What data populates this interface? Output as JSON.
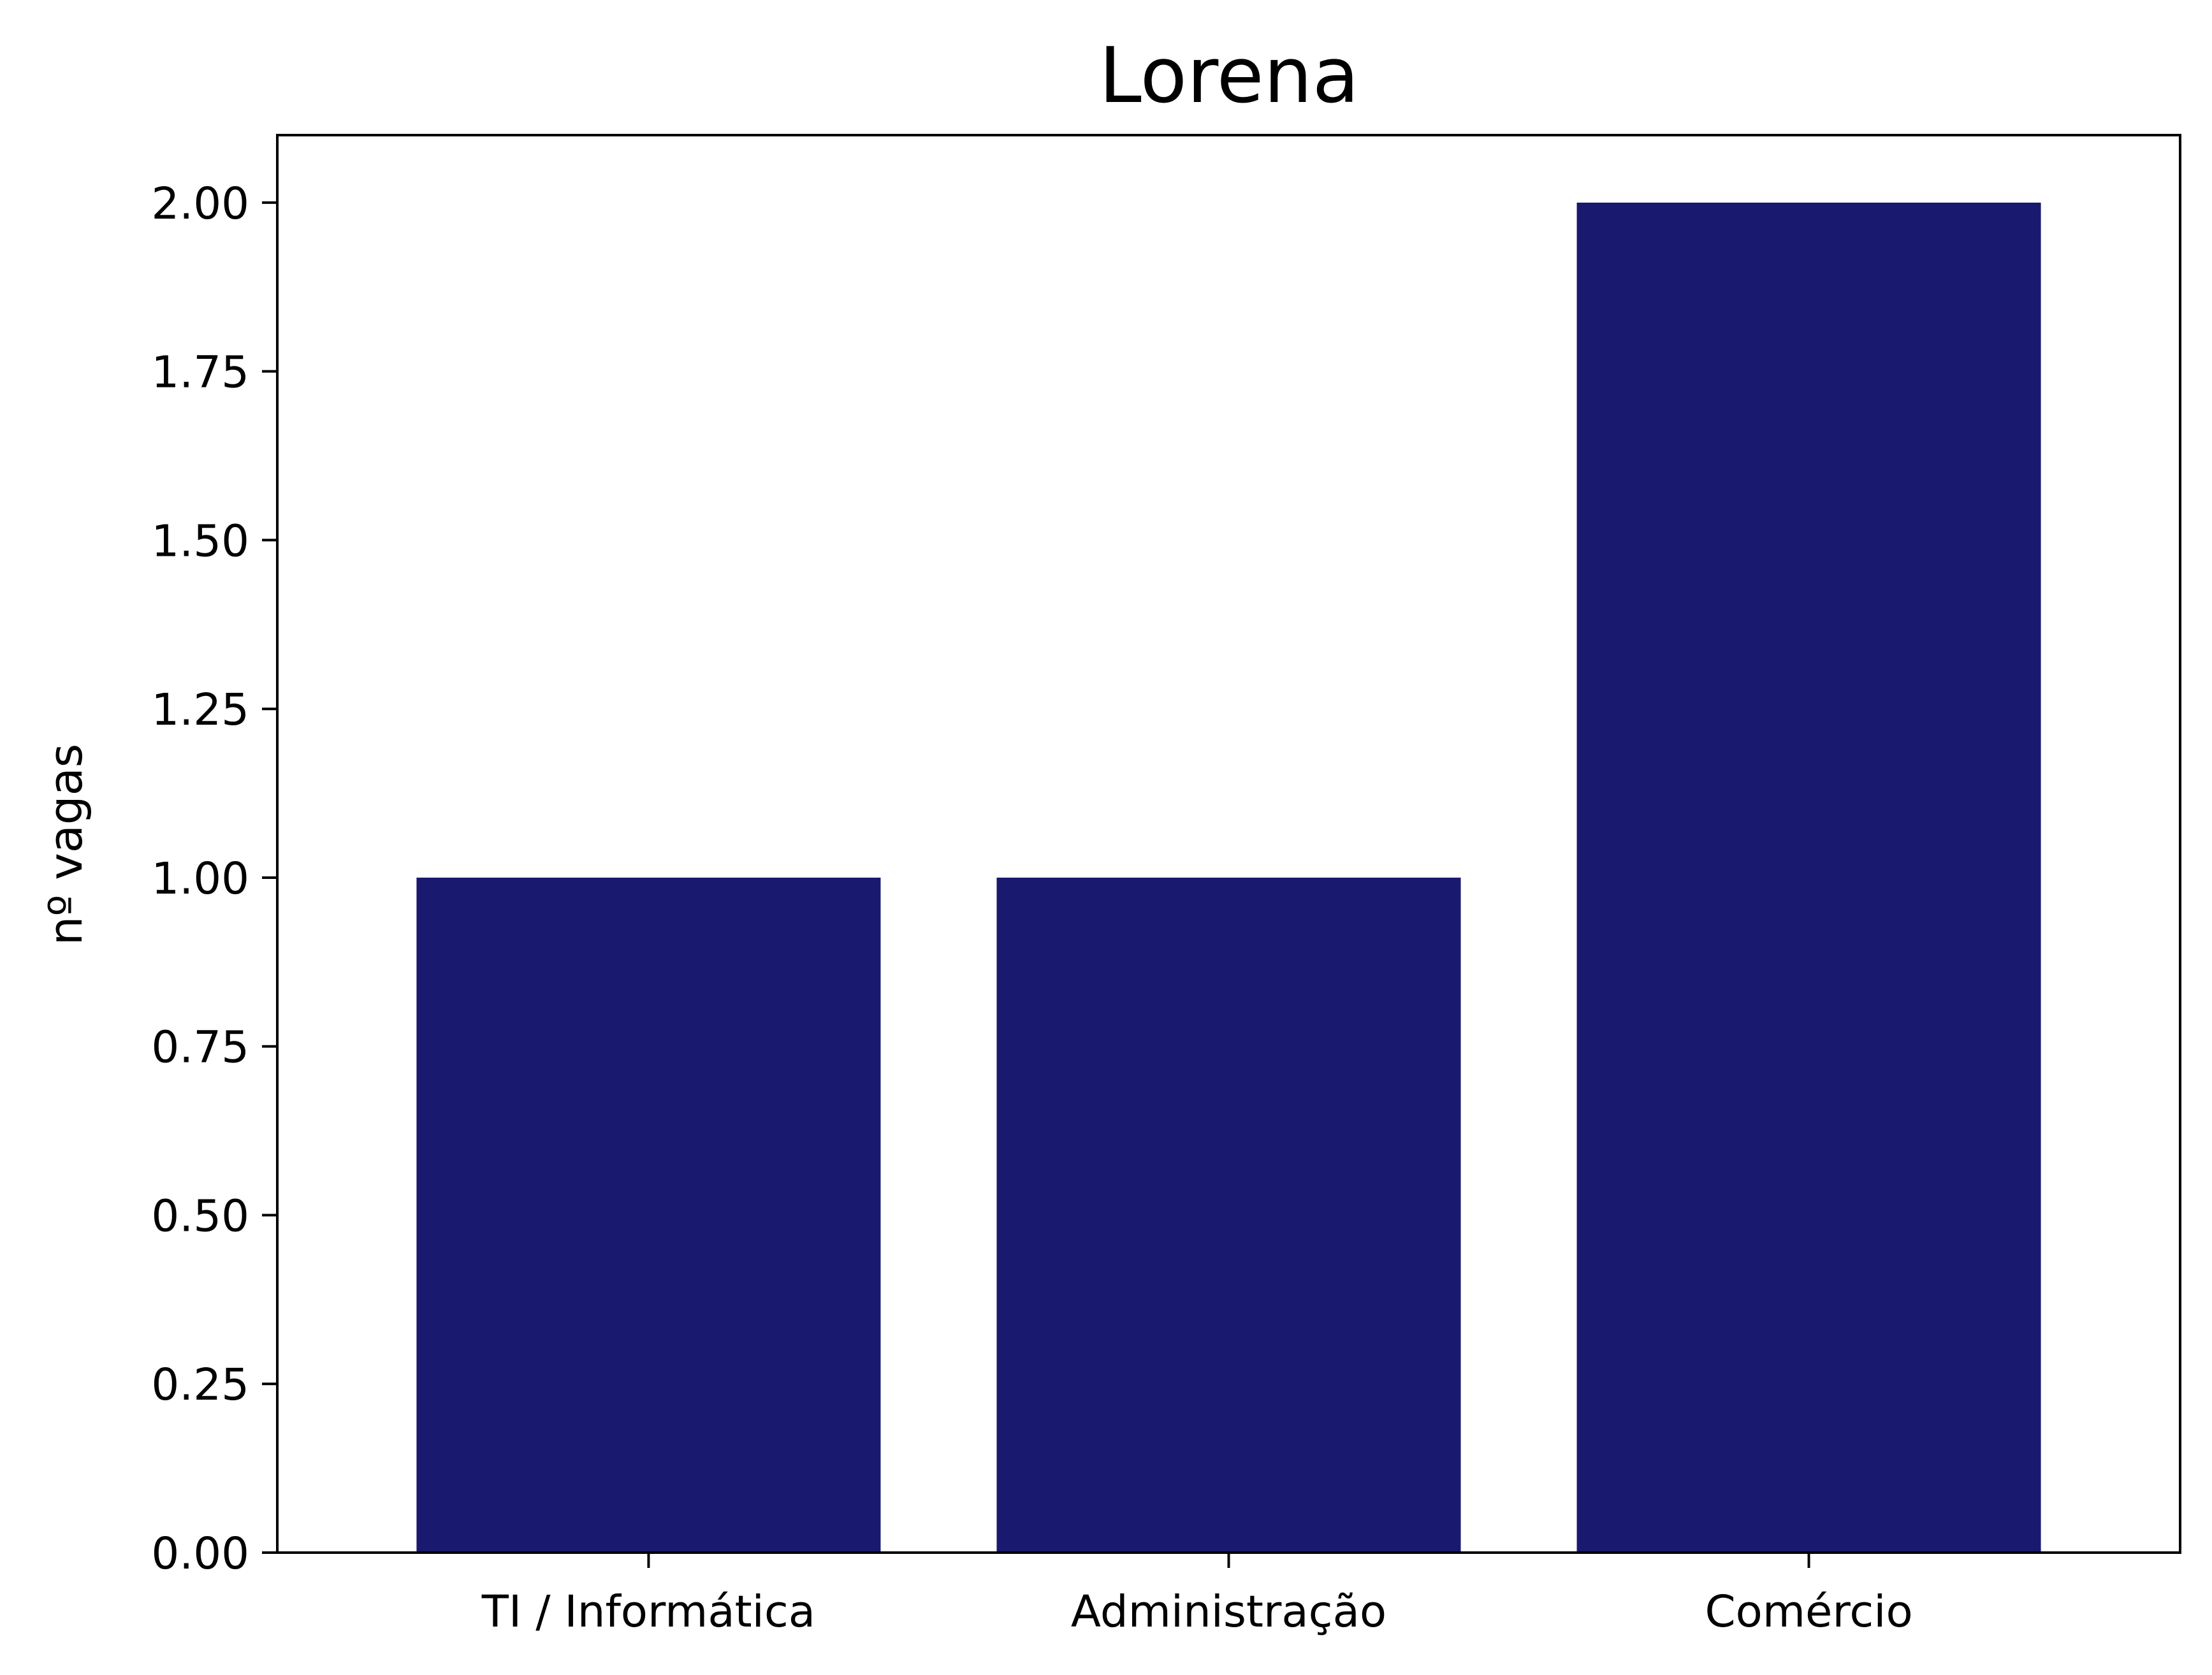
{
  "chart_data": {
    "type": "bar",
    "title": "Lorena",
    "xlabel": "",
    "ylabel": "nº vagas",
    "categories": [
      "TI / Informática",
      "Administração",
      "Comércio"
    ],
    "values": [
      1,
      1,
      2
    ],
    "ylim": [
      0,
      2.1
    ],
    "yticks": [
      0,
      0.25,
      0.5,
      0.75,
      1.0,
      1.25,
      1.5,
      1.75,
      2.0
    ],
    "ytick_labels": [
      "0.00",
      "0.25",
      "0.50",
      "0.75",
      "1.00",
      "1.25",
      "1.50",
      "1.75",
      "2.00"
    ],
    "bar_color": "#191970",
    "grid": false,
    "legend": "none"
  }
}
